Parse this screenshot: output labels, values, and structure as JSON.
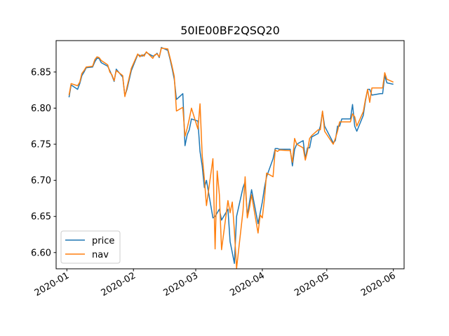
{
  "chart_data": {
    "type": "line",
    "title": "50IE00BF2QSQ20",
    "xlabel": "",
    "ylabel": "",
    "x_range": [
      "2020-01-01",
      "2020-06-01"
    ],
    "ylim": [
      6.578,
      6.893
    ],
    "x_ticks": [
      "2020-01",
      "2020-02",
      "2020-03",
      "2020-04",
      "2020-05",
      "2020-06"
    ],
    "y_ticks": [
      "6.60",
      "6.65",
      "6.70",
      "6.75",
      "6.80",
      "6.85"
    ],
    "grid": false,
    "legend_position": "lower-left",
    "colors": {
      "price": "#1f77b4",
      "nav": "#ff7f0e"
    },
    "x": [
      "2020-01-02",
      "2020-01-03",
      "2020-01-06",
      "2020-01-07",
      "2020-01-08",
      "2020-01-09",
      "2020-01-10",
      "2020-01-13",
      "2020-01-14",
      "2020-01-15",
      "2020-01-16",
      "2020-01-17",
      "2020-01-20",
      "2020-01-21",
      "2020-01-22",
      "2020-01-23",
      "2020-01-24",
      "2020-01-27",
      "2020-01-28",
      "2020-01-29",
      "2020-01-30",
      "2020-01-31",
      "2020-02-03",
      "2020-02-04",
      "2020-02-05",
      "2020-02-06",
      "2020-02-07",
      "2020-02-10",
      "2020-02-11",
      "2020-02-12",
      "2020-02-13",
      "2020-02-14",
      "2020-02-17",
      "2020-02-18",
      "2020-02-19",
      "2020-02-20",
      "2020-02-21",
      "2020-02-24",
      "2020-02-25",
      "2020-02-26",
      "2020-02-27",
      "2020-02-28",
      "2020-03-02",
      "2020-03-03",
      "2020-03-04",
      "2020-03-05",
      "2020-03-06",
      "2020-03-09",
      "2020-03-10",
      "2020-03-11",
      "2020-03-12",
      "2020-03-13",
      "2020-03-16",
      "2020-03-17",
      "2020-03-18",
      "2020-03-19",
      "2020-03-20",
      "2020-03-23",
      "2020-03-24",
      "2020-03-25",
      "2020-03-26",
      "2020-03-27",
      "2020-03-30",
      "2020-03-31",
      "2020-04-01",
      "2020-04-02",
      "2020-04-03",
      "2020-04-06",
      "2020-04-07",
      "2020-04-08",
      "2020-04-09",
      "2020-04-14",
      "2020-04-15",
      "2020-04-16",
      "2020-04-17",
      "2020-04-20",
      "2020-04-21",
      "2020-04-22",
      "2020-04-23",
      "2020-04-24",
      "2020-04-27",
      "2020-04-28",
      "2020-04-29",
      "2020-04-30",
      "2020-05-04",
      "2020-05-05",
      "2020-05-06",
      "2020-05-07",
      "2020-05-08",
      "2020-05-11",
      "2020-05-12",
      "2020-05-13",
      "2020-05-14",
      "2020-05-15",
      "2020-05-18",
      "2020-05-19",
      "2020-05-20",
      "2020-05-21",
      "2020-05-22",
      "2020-05-26",
      "2020-05-27",
      "2020-05-28",
      "2020-05-29",
      "2020-06-01"
    ],
    "series": [
      {
        "name": "price",
        "values": [
          6.815,
          6.832,
          6.826,
          6.834,
          6.845,
          6.85,
          6.856,
          6.857,
          6.864,
          6.869,
          6.869,
          6.863,
          6.858,
          6.852,
          6.845,
          6.837,
          6.854,
          6.843,
          6.817,
          6.826,
          6.839,
          6.852,
          6.874,
          6.873,
          6.872,
          6.874,
          6.877,
          6.872,
          6.873,
          6.876,
          6.87,
          6.884,
          6.88,
          6.868,
          6.855,
          6.84,
          6.812,
          6.82,
          6.748,
          6.763,
          6.77,
          6.785,
          6.782,
          6.74,
          6.72,
          6.69,
          6.7,
          6.648,
          6.65,
          6.655,
          6.66,
          6.645,
          6.66,
          6.615,
          6.6,
          6.585,
          6.65,
          6.69,
          6.698,
          6.65,
          6.67,
          6.687,
          6.64,
          6.655,
          6.67,
          6.69,
          6.705,
          6.73,
          6.744,
          6.744,
          6.743,
          6.743,
          6.72,
          6.743,
          6.75,
          6.755,
          6.73,
          6.745,
          6.745,
          6.76,
          6.765,
          6.775,
          6.795,
          6.775,
          6.752,
          6.755,
          6.775,
          6.775,
          6.785,
          6.785,
          6.785,
          6.805,
          6.775,
          6.768,
          6.79,
          6.81,
          6.826,
          6.826,
          6.818,
          6.82,
          6.82,
          6.845,
          6.835,
          6.833
        ],
        "color": "#1f77b4"
      },
      {
        "name": "nav",
        "values": [
          6.818,
          6.834,
          6.831,
          6.836,
          6.848,
          6.852,
          6.857,
          6.858,
          6.867,
          6.871,
          6.87,
          6.866,
          6.86,
          6.85,
          6.846,
          6.838,
          6.852,
          6.845,
          6.816,
          6.829,
          6.842,
          6.855,
          6.875,
          6.871,
          6.874,
          6.872,
          6.878,
          6.869,
          6.874,
          6.875,
          6.871,
          6.883,
          6.882,
          6.87,
          6.858,
          6.844,
          6.796,
          6.801,
          6.761,
          6.772,
          6.785,
          6.8,
          6.771,
          6.806,
          6.735,
          6.702,
          6.665,
          6.73,
          6.605,
          6.713,
          6.68,
          6.604,
          6.672,
          6.655,
          6.67,
          6.63,
          6.578,
          6.658,
          6.705,
          6.648,
          6.662,
          6.68,
          6.627,
          6.652,
          6.648,
          6.675,
          6.71,
          6.705,
          6.742,
          6.74,
          6.742,
          6.741,
          6.725,
          6.758,
          6.75,
          6.745,
          6.728,
          6.74,
          6.758,
          6.762,
          6.77,
          6.77,
          6.796,
          6.768,
          6.75,
          6.758,
          6.768,
          6.781,
          6.781,
          6.781,
          6.781,
          6.792,
          6.788,
          6.775,
          6.795,
          6.812,
          6.826,
          6.808,
          6.828,
          6.828,
          6.828,
          6.849,
          6.84,
          6.836
        ],
        "color": "#ff7f0e"
      }
    ]
  }
}
